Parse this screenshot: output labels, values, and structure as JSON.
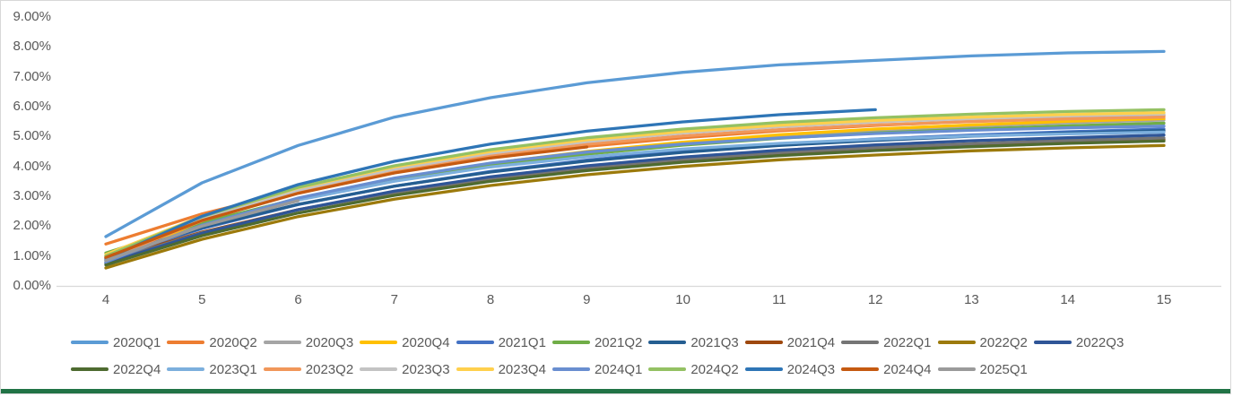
{
  "chart": {
    "background": "#FFFFFF",
    "border_color": "#D8D8D8",
    "axis_color": "#D9D9D9",
    "label_color": "#595959",
    "bottom_bar_color": "#217346"
  },
  "chart_data": {
    "type": "line",
    "title": "",
    "xlabel": "",
    "ylabel": "",
    "grid": false,
    "legend_position": "bottom",
    "ylim": [
      0,
      9
    ],
    "x": [
      4,
      5,
      6,
      7,
      8,
      9,
      10,
      11,
      12,
      13,
      14,
      15
    ],
    "y_ticks": [
      {
        "value": 0,
        "label": "0.00%"
      },
      {
        "value": 1,
        "label": "1.00%"
      },
      {
        "value": 2,
        "label": "2.00%"
      },
      {
        "value": 3,
        "label": "3.00%"
      },
      {
        "value": 4,
        "label": "4.00%"
      },
      {
        "value": 5,
        "label": "5.00%"
      },
      {
        "value": 6,
        "label": "6.00%"
      },
      {
        "value": 7,
        "label": "7.00%"
      },
      {
        "value": 8,
        "label": "8.00%"
      },
      {
        "value": 9,
        "label": "9.00%"
      }
    ],
    "series": [
      {
        "name": "2020Q1",
        "color": "#5B9BD5",
        "values": [
          1.65,
          3.45,
          4.7,
          5.65,
          6.3,
          6.8,
          7.15,
          7.4,
          7.55,
          7.7,
          7.8,
          7.85
        ]
      },
      {
        "name": "2020Q2",
        "color": "#ED7D31",
        "values": [
          1.4,
          2.41,
          3.2,
          3.82,
          4.3,
          4.67,
          4.96,
          5.19,
          5.37,
          5.51,
          5.61,
          5.7
        ]
      },
      {
        "name": "2020Q3",
        "color": "#A5A5A5",
        "values": [
          0.95,
          2.03,
          2.88,
          3.54,
          4.05,
          4.45,
          4.76,
          5.01,
          5.2,
          5.34,
          5.46,
          5.55
        ]
      },
      {
        "name": "2020Q4",
        "color": "#FFC000",
        "values": [
          1.0,
          2.08,
          2.93,
          3.59,
          4.1,
          4.5,
          4.81,
          5.06,
          5.25,
          5.39,
          5.51,
          5.6
        ]
      },
      {
        "name": "2021Q1",
        "color": "#4472C4",
        "values": [
          0.9,
          1.92,
          2.72,
          3.34,
          3.83,
          4.21,
          4.51,
          4.74,
          4.92,
          5.05,
          5.16,
          5.25
        ]
      },
      {
        "name": "2021Q2",
        "color": "#70AD47",
        "values": [
          1.1,
          2.12,
          2.92,
          3.54,
          4.03,
          4.41,
          4.71,
          4.94,
          5.12,
          5.25,
          5.36,
          5.45
        ]
      },
      {
        "name": "2021Q3",
        "color": "#255E91",
        "values": [
          0.95,
          1.95,
          2.73,
          3.34,
          3.81,
          4.18,
          4.47,
          4.7,
          4.87,
          5.01,
          5.12,
          5.2
        ]
      },
      {
        "name": "2021Q4",
        "color": "#9E480E",
        "values": [
          0.85,
          1.8,
          2.55,
          3.13,
          3.58,
          3.93,
          4.21,
          4.42,
          4.59,
          4.72,
          4.82,
          4.9
        ]
      },
      {
        "name": "2022Q1",
        "color": "#757575",
        "values": [
          0.8,
          1.78,
          2.54,
          3.13,
          3.6,
          3.96,
          4.24,
          4.46,
          4.63,
          4.76,
          4.87,
          4.95
        ]
      },
      {
        "name": "2022Q2",
        "color": "#9C7A0B",
        "values": [
          0.6,
          1.56,
          2.32,
          2.9,
          3.36,
          3.72,
          4.0,
          4.22,
          4.38,
          4.52,
          4.62,
          4.7
        ]
      },
      {
        "name": "2022Q3",
        "color": "#2F5597",
        "values": [
          0.75,
          1.76,
          2.55,
          3.17,
          3.65,
          4.02,
          4.31,
          4.54,
          4.72,
          4.86,
          4.96,
          5.05
        ]
      },
      {
        "name": "2022Q4",
        "color": "#4E6B30",
        "values": [
          0.7,
          1.68,
          2.44,
          3.03,
          3.5,
          3.86,
          4.14,
          4.36,
          4.53,
          4.66,
          4.77,
          4.85
        ]
      },
      {
        "name": "2023Q1",
        "color": "#7CAFDD",
        "values": [
          0.85,
          2.01,
          2.87,
          3.5,
          3.98,
          4.32,
          4.58,
          4.77,
          4.91,
          5.02,
          5.09,
          5.15
        ]
      },
      {
        "name": "2023Q2",
        "color": "#F1975A",
        "values": [
          0.9,
          2.18,
          3.13,
          3.83,
          4.35,
          4.74,
          5.02,
          5.23,
          5.39,
          5.5,
          5.59,
          5.65
        ]
      },
      {
        "name": "2023Q3",
        "color": "#C3C3C3",
        "values": [
          0.95,
          2.25,
          3.21,
          3.91,
          4.44,
          4.83,
          5.12,
          5.33,
          5.49,
          5.6,
          5.69,
          5.75
        ]
      },
      {
        "name": "2023Q4",
        "color": "#FFD04D",
        "values": [
          1.05,
          2.33,
          3.28,
          3.98,
          4.5,
          4.89,
          5.17,
          5.38,
          5.54,
          5.65,
          5.74,
          5.8
        ]
      },
      {
        "name": "2024Q1",
        "color": "#698ED0",
        "values": [
          0.8,
          2.03,
          2.94,
          3.61,
          4.11,
          4.48,
          4.75,
          4.95,
          5.1,
          5.21,
          5.29,
          5.35
        ]
      },
      {
        "name": "2024Q2",
        "color": "#94C163",
        "values": [
          1.0,
          2.32,
          3.3,
          4.02,
          4.56,
          4.96,
          5.25,
          5.47,
          5.63,
          5.75,
          5.84,
          5.9
        ]
      },
      {
        "name": "2024Q3",
        "color": "#2E75B6",
        "values": [
          0.9,
          2.33,
          3.39,
          4.17,
          4.75,
          5.18,
          5.49,
          5.73,
          5.9
        ]
      },
      {
        "name": "2024Q4",
        "color": "#C55A11",
        "values": [
          0.95,
          2.19,
          3.1,
          3.78,
          4.28,
          4.65
        ]
      },
      {
        "name": "2025Q1",
        "color": "#9A9A9A",
        "values": [
          0.85,
          2.0,
          2.85
        ]
      }
    ],
    "legend": {
      "row1": [
        0,
        1,
        2,
        3,
        4,
        5,
        6,
        7,
        8,
        9,
        10
      ],
      "row2": [
        11,
        12,
        13,
        14,
        15,
        16,
        17,
        18,
        19,
        20
      ]
    }
  }
}
